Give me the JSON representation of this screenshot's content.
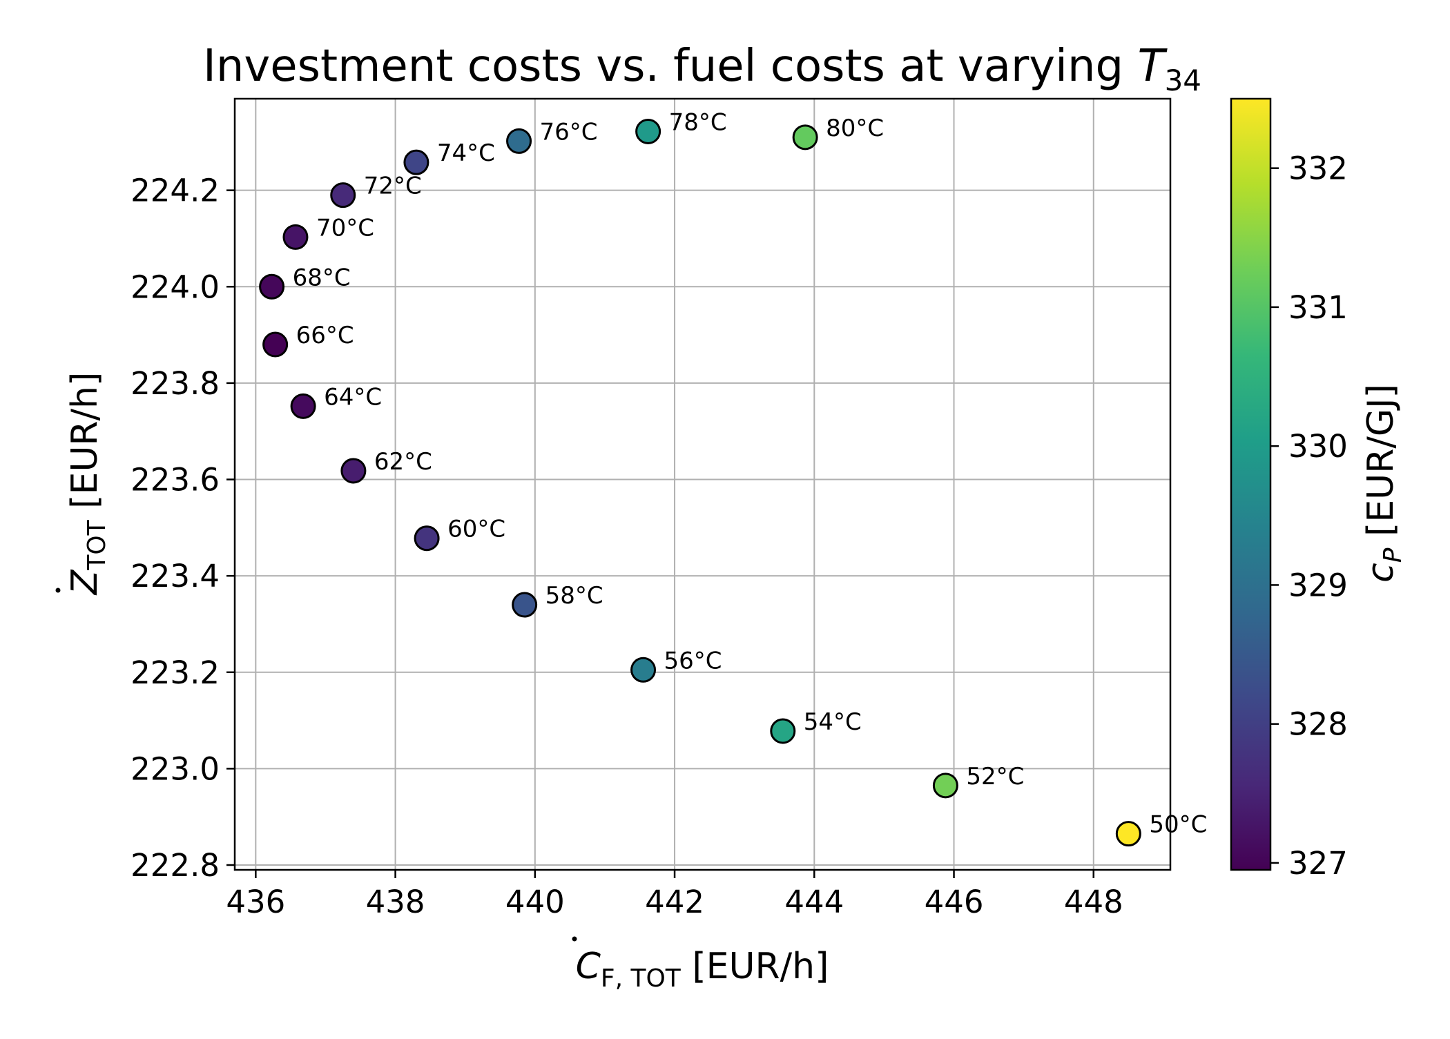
{
  "chart_data": {
    "type": "scatter",
    "title": "Investment costs vs. fuel costs at varying T34",
    "title_parts": {
      "prefix": "Investment costs vs. fuel costs at varying ",
      "var": "T",
      "sub": "34"
    },
    "xlabel": "Ċ_F,TOT [EUR/h]",
    "xlabel_parts": {
      "sym": "C",
      "sub": "F, TOT",
      "unit": " [EUR/h]"
    },
    "ylabel": "Ż_TOT [EUR/h]",
    "ylabel_parts": {
      "sym": "Z",
      "sub": "TOT",
      "unit": " [EUR/h]"
    },
    "xlim": [
      435.7,
      449.1
    ],
    "ylim": [
      222.79,
      224.39
    ],
    "xticks": [
      436,
      438,
      440,
      442,
      444,
      446,
      448
    ],
    "yticks": [
      222.8,
      223.0,
      223.2,
      223.4,
      223.6,
      223.8,
      224.0,
      224.2
    ],
    "grid": true,
    "colorbar": {
      "label": "c_P [EUR/GJ]",
      "label_parts": {
        "sym": "c",
        "sub": "P",
        "unit": " [EUR/GJ]"
      },
      "range": [
        326.95,
        332.5
      ],
      "ticks": [
        327,
        328,
        329,
        330,
        331,
        332
      ],
      "colormap": "viridis",
      "colors": [
        "#440154",
        "#482878",
        "#3e4989",
        "#31688e",
        "#26828e",
        "#1f9e89",
        "#35b779",
        "#6ece58",
        "#b5de2b",
        "#fde725"
      ]
    },
    "points": [
      {
        "label": "50°C",
        "x": 448.5,
        "y": 222.865,
        "c": 332.5
      },
      {
        "label": "52°C",
        "x": 445.88,
        "y": 222.965,
        "c": 331.3
      },
      {
        "label": "54°C",
        "x": 443.55,
        "y": 223.078,
        "c": 330.2
      },
      {
        "label": "56°C",
        "x": 441.55,
        "y": 223.205,
        "c": 329.3
      },
      {
        "label": "58°C",
        "x": 439.85,
        "y": 223.34,
        "c": 328.4
      },
      {
        "label": "60°C",
        "x": 438.45,
        "y": 223.478,
        "c": 327.8
      },
      {
        "label": "62°C",
        "x": 437.4,
        "y": 223.618,
        "c": 327.4
      },
      {
        "label": "64°C",
        "x": 436.68,
        "y": 223.752,
        "c": 327.1
      },
      {
        "label": "66°C",
        "x": 436.28,
        "y": 223.88,
        "c": 326.95
      },
      {
        "label": "68°C",
        "x": 436.23,
        "y": 224.0,
        "c": 327.05
      },
      {
        "label": "70°C",
        "x": 436.57,
        "y": 224.103,
        "c": 327.25
      },
      {
        "label": "72°C",
        "x": 437.25,
        "y": 224.19,
        "c": 327.6
      },
      {
        "label": "74°C",
        "x": 438.3,
        "y": 224.258,
        "c": 328.1
      },
      {
        "label": "76°C",
        "x": 439.77,
        "y": 224.302,
        "c": 328.9
      },
      {
        "label": "78°C",
        "x": 441.62,
        "y": 224.322,
        "c": 329.95
      },
      {
        "label": "80°C",
        "x": 443.87,
        "y": 224.31,
        "c": 331.15
      }
    ]
  }
}
